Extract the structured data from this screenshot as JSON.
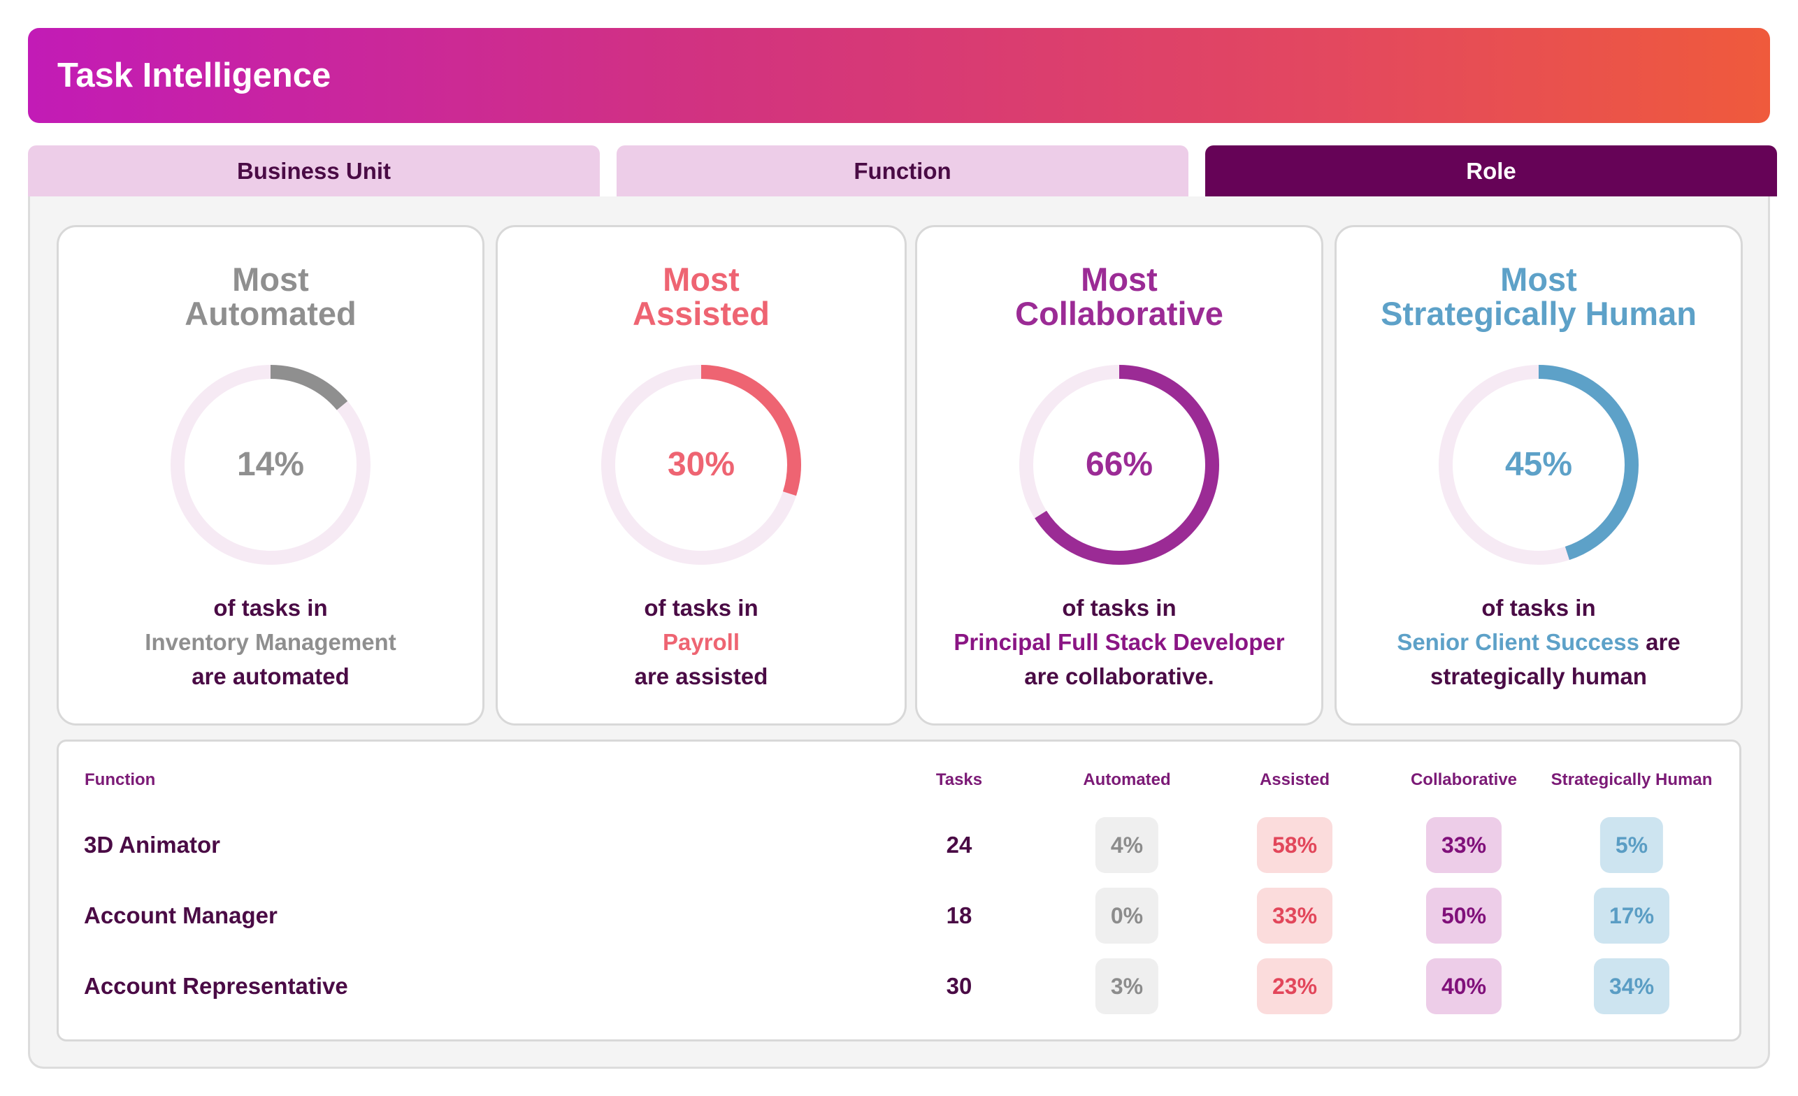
{
  "header": {
    "title": "Task Intelligence"
  },
  "tabs": [
    {
      "label": "Business Unit",
      "active": false
    },
    {
      "label": "Function",
      "active": false
    },
    {
      "label": "Role",
      "active": true
    }
  ],
  "colors": {
    "header_gradient": [
      "#c21bb6",
      "#ef5a3c"
    ],
    "automated": "#8f8f8f",
    "assisted": "#ee6472",
    "collaborative": "#9b2b95",
    "human": "#5da1c8",
    "ring_track": "#f6eaf4",
    "active_tab": "#660357",
    "inactive_tab": "#edcde8"
  },
  "cards": [
    {
      "title_line1": "Most",
      "title_line2": "Automated",
      "percent": 14,
      "percent_label": "14%",
      "desc_prefix": "of tasks in",
      "highlight": "Inventory Management",
      "desc_suffix": "are automated"
    },
    {
      "title_line1": "Most",
      "title_line2": "Assisted",
      "percent": 30,
      "percent_label": "30%",
      "desc_prefix": "of tasks in",
      "highlight": "Payroll",
      "desc_suffix": "are assisted"
    },
    {
      "title_line1": "Most",
      "title_line2": "Collaborative",
      "percent": 66,
      "percent_label": "66%",
      "desc_prefix": "of tasks in",
      "highlight": "Principal Full Stack Developer",
      "desc_suffix": "are collaborative."
    },
    {
      "title_line1": "Most",
      "title_line2": "Strategically Human",
      "percent": 45,
      "percent_label": "45%",
      "desc_prefix": "of tasks in",
      "highlight": "Senior Client Success",
      "highlight_tail": "are",
      "desc_suffix": "strategically human"
    }
  ],
  "table": {
    "headers": [
      "Function",
      "Tasks",
      "Automated",
      "Assisted",
      "Collaborative",
      "Strategically Human"
    ],
    "rows": [
      {
        "name": "3D Animator",
        "tasks": "24",
        "automated": "4%",
        "assisted": "58%",
        "collaborative": "33%",
        "human": "5%"
      },
      {
        "name": "Account Manager",
        "tasks": "18",
        "automated": "0%",
        "assisted": "33%",
        "collaborative": "50%",
        "human": "17%"
      },
      {
        "name": "Account Representative",
        "tasks": "30",
        "automated": "3%",
        "assisted": "23%",
        "collaborative": "40%",
        "human": "34%"
      }
    ]
  }
}
